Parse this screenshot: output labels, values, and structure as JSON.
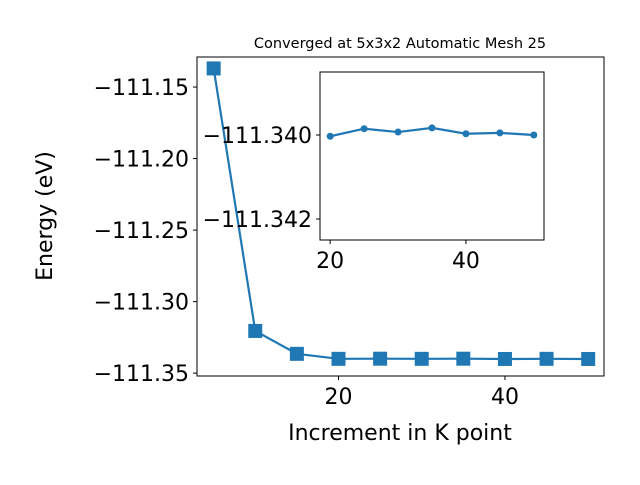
{
  "colors": {
    "line": "#1f77b4",
    "axis": "#000000",
    "background": "#ffffff"
  },
  "chart_data": [
    {
      "type": "line",
      "title": "Converged at 5x3x2 Automatic Mesh 25",
      "xlabel": "Increment in K point",
      "ylabel": "Energy (eV)",
      "xticks": [
        20,
        40
      ],
      "xtick_labels": [
        "20",
        "40"
      ],
      "yticks": [
        -111.15,
        -111.2,
        -111.25,
        -111.3,
        -111.35
      ],
      "ytick_labels": [
        "−111.15",
        "−111.20",
        "−111.25",
        "−111.30",
        "−111.35"
      ],
      "xlim": [
        3,
        51.9
      ],
      "ylim": [
        -111.352,
        -111.129
      ],
      "marker": "square",
      "grid": false,
      "series": [
        {
          "x": [
            5,
            10,
            15,
            20,
            25,
            30,
            35,
            40,
            45,
            50
          ],
          "values": [
            -111.137,
            -111.3205,
            -111.3365,
            -111.34,
            -111.3399,
            -111.34,
            -111.3399,
            -111.3401,
            -111.34,
            -111.3401
          ]
        }
      ]
    },
    {
      "type": "line",
      "title": "",
      "xlabel": "",
      "ylabel": "",
      "xticks": [
        20,
        40
      ],
      "xtick_labels": [
        "20",
        "40"
      ],
      "yticks": [
        -111.342,
        -111.34
      ],
      "ytick_labels": [
        "−111.342",
        "−111.340"
      ],
      "xlim": [
        18.5,
        51.5
      ],
      "ylim": [
        -111.3425,
        -111.3385
      ],
      "marker": "circle",
      "grid": false,
      "series": [
        {
          "x": [
            20,
            25,
            30,
            35,
            40,
            45,
            50
          ],
          "values": [
            -111.34003,
            -111.33985,
            -111.33993,
            -111.33983,
            -111.33997,
            -111.33995,
            -111.34
          ]
        }
      ]
    }
  ]
}
